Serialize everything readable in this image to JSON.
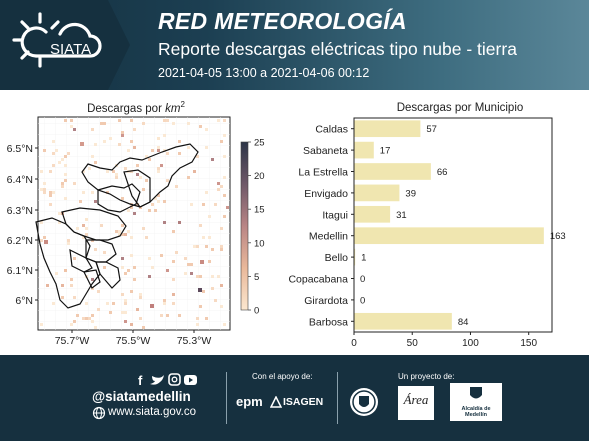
{
  "header": {
    "logo_text": "SIATA",
    "title": "RED METEOROLOGÍA",
    "subtitle": "Reporte descargas eléctricas tipo nube - tierra",
    "date_range": "2021-04-05 13:00 a 2021-04-06 00:12"
  },
  "colors": {
    "header_dark": "#15303f",
    "header_light": "#5b8799",
    "bar_fill": "#f0e6b0",
    "footer_bg": "#16303f"
  },
  "map": {
    "title_prefix": "Descargas por ",
    "title_unit": "km",
    "title_exp": "2",
    "lat_ticks": [
      "6.5°N",
      "6.4°N",
      "6.3°N",
      "6.2°N",
      "6.1°N",
      "6°N"
    ],
    "lon_ticks": [
      "75.7°W",
      "75.5°W",
      "75.3°W"
    ],
    "colorbar_ticks": [
      "25",
      "20",
      "15",
      "10",
      "5",
      "0"
    ]
  },
  "chart_data": {
    "type": "bar",
    "orientation": "horizontal",
    "title": "Descargas por Municipio",
    "categories": [
      "Caldas",
      "Sabaneta",
      "La Estrella",
      "Envigado",
      "Itagui",
      "Medellin",
      "Bello",
      "Copacabana",
      "Girardota",
      "Barbosa"
    ],
    "values": [
      57,
      17,
      66,
      39,
      31,
      163,
      1,
      0,
      0,
      84
    ],
    "value_labels": [
      "57",
      "17",
      "66",
      "39",
      "31",
      "163",
      "1",
      "0",
      "0",
      "84"
    ],
    "xlim": [
      0,
      170
    ],
    "xticks": [
      "0",
      "50",
      "100",
      "150"
    ],
    "xtick_values": [
      0,
      50,
      100,
      150
    ]
  },
  "footer": {
    "social_handle": "@siatamedellin",
    "website": "www.siata.gov.co",
    "support_label": "Con el apoyo de:",
    "partner_1": "epm",
    "partner_2": "ISAGEN",
    "project_label": "Un proyecto de:",
    "partner_3": "Área",
    "partner_4": "Alcaldía de Medellín"
  }
}
